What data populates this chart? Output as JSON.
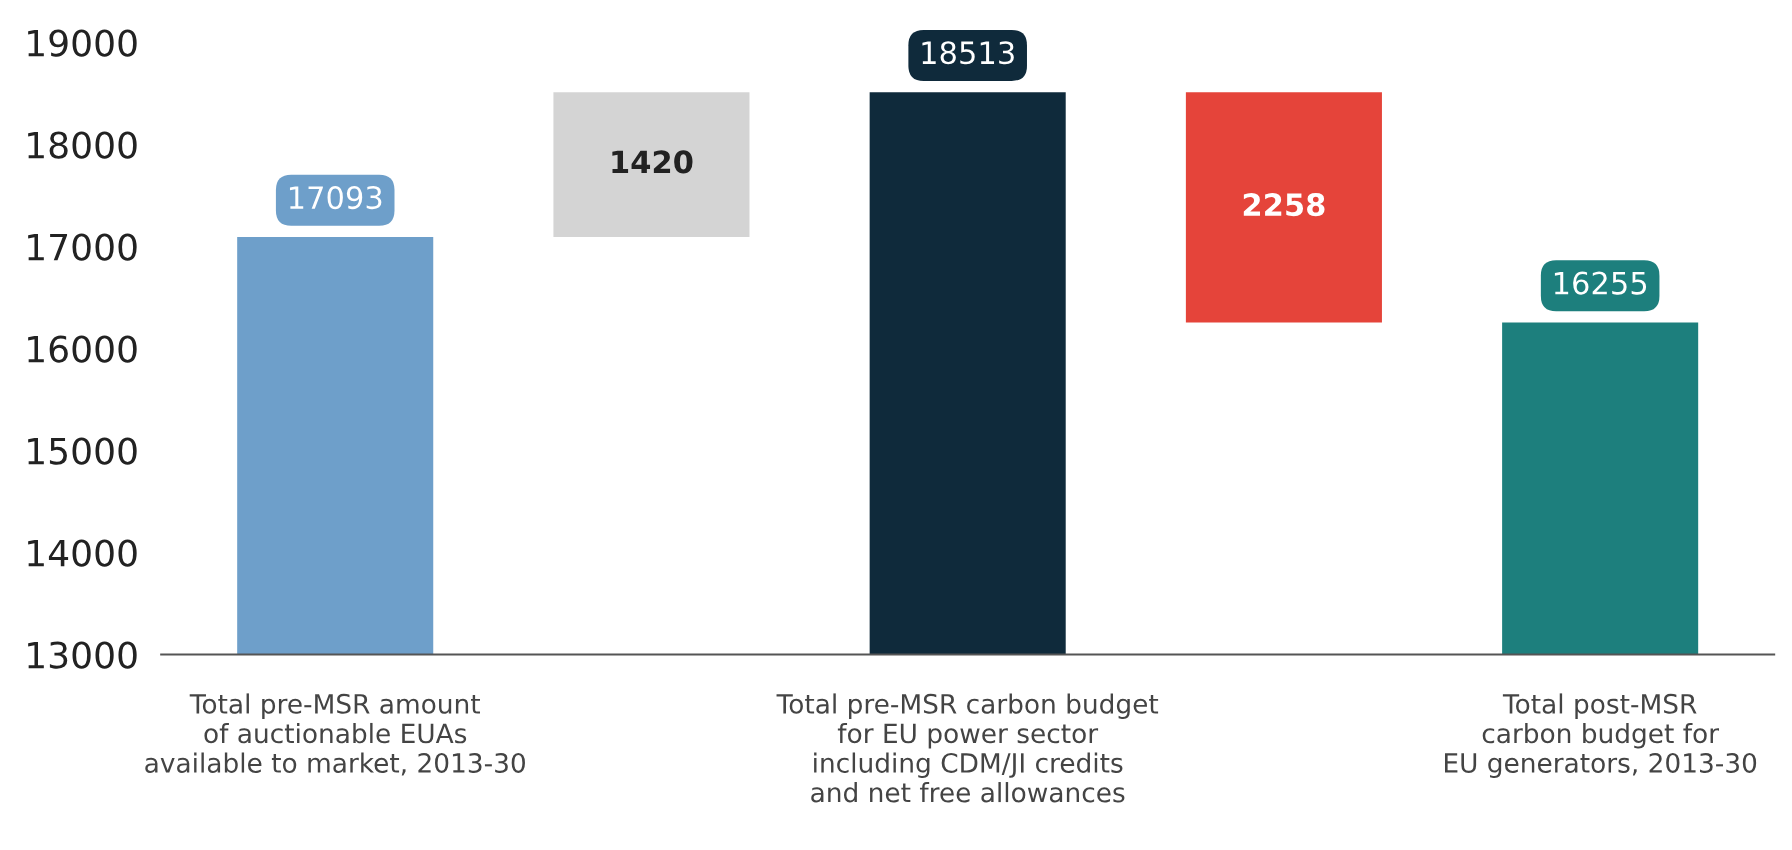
{
  "chart_data": {
    "type": "bar",
    "categories": [
      "Total pre-MSR amount\nof auctionable EUAs\navailable to market, 2013-30",
      null,
      "Total pre-MSR carbon budget\nfor EU power sector\nincluding CDM/JI credits\nand net free allowances",
      null,
      "Total post-MSR\ncarbon budget for\nEU generators, 2013-30"
    ],
    "values": [
      17093,
      1420,
      18513,
      2258,
      16255
    ],
    "base": [
      0,
      17093,
      0,
      16255,
      0
    ],
    "colors": [
      "#6e9fca",
      "#d4d4d4",
      "#0f2a3b",
      "#e5443a",
      "#1d7f7d"
    ],
    "ylim": [
      13000,
      19000
    ],
    "yticks": [
      13000,
      14000,
      15000,
      16000,
      17000,
      18000,
      19000
    ],
    "grid": false,
    "data_labels": true
  }
}
